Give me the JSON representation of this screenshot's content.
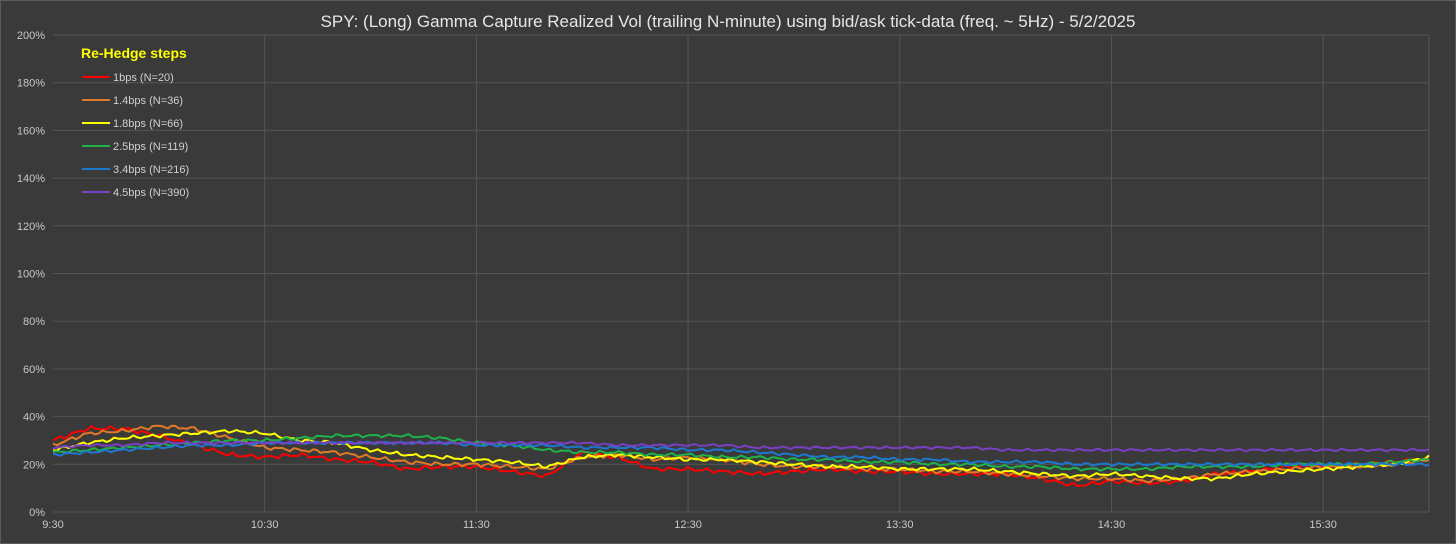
{
  "chart_data": {
    "type": "line",
    "title": "SPY: (Long) Gamma Capture Realized Vol (trailing N-minute) using bid/ask tick-data (freq. ~ 5Hz) - 5/2/2025",
    "xlabel": "",
    "ylabel": "",
    "x_ticks": [
      "9:30",
      "10:30",
      "11:30",
      "12:30",
      "13:30",
      "14:30",
      "15:30"
    ],
    "x_range_minutes": [
      570,
      960
    ],
    "y_ticks": [
      "0%",
      "20%",
      "40%",
      "60%",
      "80%",
      "100%",
      "120%",
      "140%",
      "160%",
      "180%",
      "200%"
    ],
    "ylim": [
      0,
      2.0
    ],
    "grid": true,
    "legend_title": "Re-Hedge steps",
    "legend_position": "top-left",
    "x_minutes": [
      570,
      580,
      590,
      600,
      610,
      620,
      630,
      640,
      650,
      660,
      670,
      680,
      690,
      700,
      710,
      720,
      730,
      740,
      750,
      760,
      770,
      780,
      790,
      800,
      810,
      820,
      830,
      840,
      850,
      860,
      870,
      880,
      890,
      900,
      910,
      920,
      930,
      940,
      950,
      960
    ],
    "series": [
      {
        "name": "1bps  (N=20)",
        "color": "#ff0000",
        "values": [
          0.3,
          0.35,
          0.35,
          0.32,
          0.28,
          0.24,
          0.23,
          0.24,
          0.22,
          0.21,
          0.18,
          0.19,
          0.19,
          0.17,
          0.15,
          0.25,
          0.23,
          0.18,
          0.18,
          0.17,
          0.16,
          0.17,
          0.18,
          0.17,
          0.17,
          0.16,
          0.16,
          0.16,
          0.14,
          0.11,
          0.13,
          0.12,
          0.13,
          0.16,
          0.17,
          0.19,
          0.19,
          0.2,
          0.21,
          0.22
        ]
      },
      {
        "name": "1.4bps  (N=36)",
        "color": "#e07a28",
        "values": [
          0.28,
          0.33,
          0.34,
          0.36,
          0.35,
          0.31,
          0.27,
          0.26,
          0.25,
          0.23,
          0.21,
          0.2,
          0.2,
          0.19,
          0.18,
          0.23,
          0.24,
          0.22,
          0.23,
          0.22,
          0.2,
          0.19,
          0.19,
          0.18,
          0.18,
          0.17,
          0.17,
          0.16,
          0.15,
          0.14,
          0.14,
          0.13,
          0.14,
          0.16,
          0.17,
          0.18,
          0.19,
          0.19,
          0.2,
          0.22
        ]
      },
      {
        "name": "1.8bps  (N=66)",
        "color": "#ffff00",
        "values": [
          0.26,
          0.29,
          0.31,
          0.32,
          0.33,
          0.34,
          0.33,
          0.3,
          0.29,
          0.26,
          0.24,
          0.23,
          0.22,
          0.21,
          0.19,
          0.23,
          0.24,
          0.23,
          0.22,
          0.22,
          0.21,
          0.2,
          0.19,
          0.19,
          0.18,
          0.18,
          0.18,
          0.17,
          0.16,
          0.15,
          0.16,
          0.15,
          0.14,
          0.14,
          0.16,
          0.17,
          0.18,
          0.19,
          0.2,
          0.23
        ]
      },
      {
        "name": "2.5bps  (N=119)",
        "color": "#1fb24a",
        "values": [
          0.25,
          0.26,
          0.27,
          0.28,
          0.29,
          0.3,
          0.3,
          0.31,
          0.32,
          0.32,
          0.32,
          0.31,
          0.29,
          0.28,
          0.26,
          0.25,
          0.25,
          0.24,
          0.24,
          0.23,
          0.23,
          0.22,
          0.22,
          0.21,
          0.21,
          0.2,
          0.2,
          0.19,
          0.19,
          0.18,
          0.18,
          0.18,
          0.19,
          0.19,
          0.19,
          0.2,
          0.2,
          0.2,
          0.21,
          0.22
        ]
      },
      {
        "name": "3.4bps  (N=216)",
        "color": "#1e78d0",
        "values": [
          0.24,
          0.25,
          0.26,
          0.27,
          0.28,
          0.28,
          0.29,
          0.29,
          0.29,
          0.29,
          0.29,
          0.29,
          0.28,
          0.28,
          0.28,
          0.27,
          0.27,
          0.27,
          0.26,
          0.26,
          0.25,
          0.24,
          0.23,
          0.23,
          0.22,
          0.22,
          0.21,
          0.21,
          0.21,
          0.2,
          0.2,
          0.2,
          0.2,
          0.2,
          0.2,
          0.2,
          0.2,
          0.2,
          0.2,
          0.2
        ]
      },
      {
        "name": "4.5bps  (N=390)",
        "color": "#7a3fc4",
        "values": [
          0.27,
          0.28,
          0.28,
          0.29,
          0.29,
          0.29,
          0.29,
          0.29,
          0.29,
          0.29,
          0.29,
          0.29,
          0.29,
          0.29,
          0.29,
          0.29,
          0.28,
          0.28,
          0.28,
          0.28,
          0.27,
          0.27,
          0.27,
          0.27,
          0.27,
          0.27,
          0.27,
          0.26,
          0.26,
          0.26,
          0.26,
          0.26,
          0.26,
          0.26,
          0.26,
          0.26,
          0.26,
          0.26,
          0.26,
          0.26
        ]
      }
    ]
  }
}
